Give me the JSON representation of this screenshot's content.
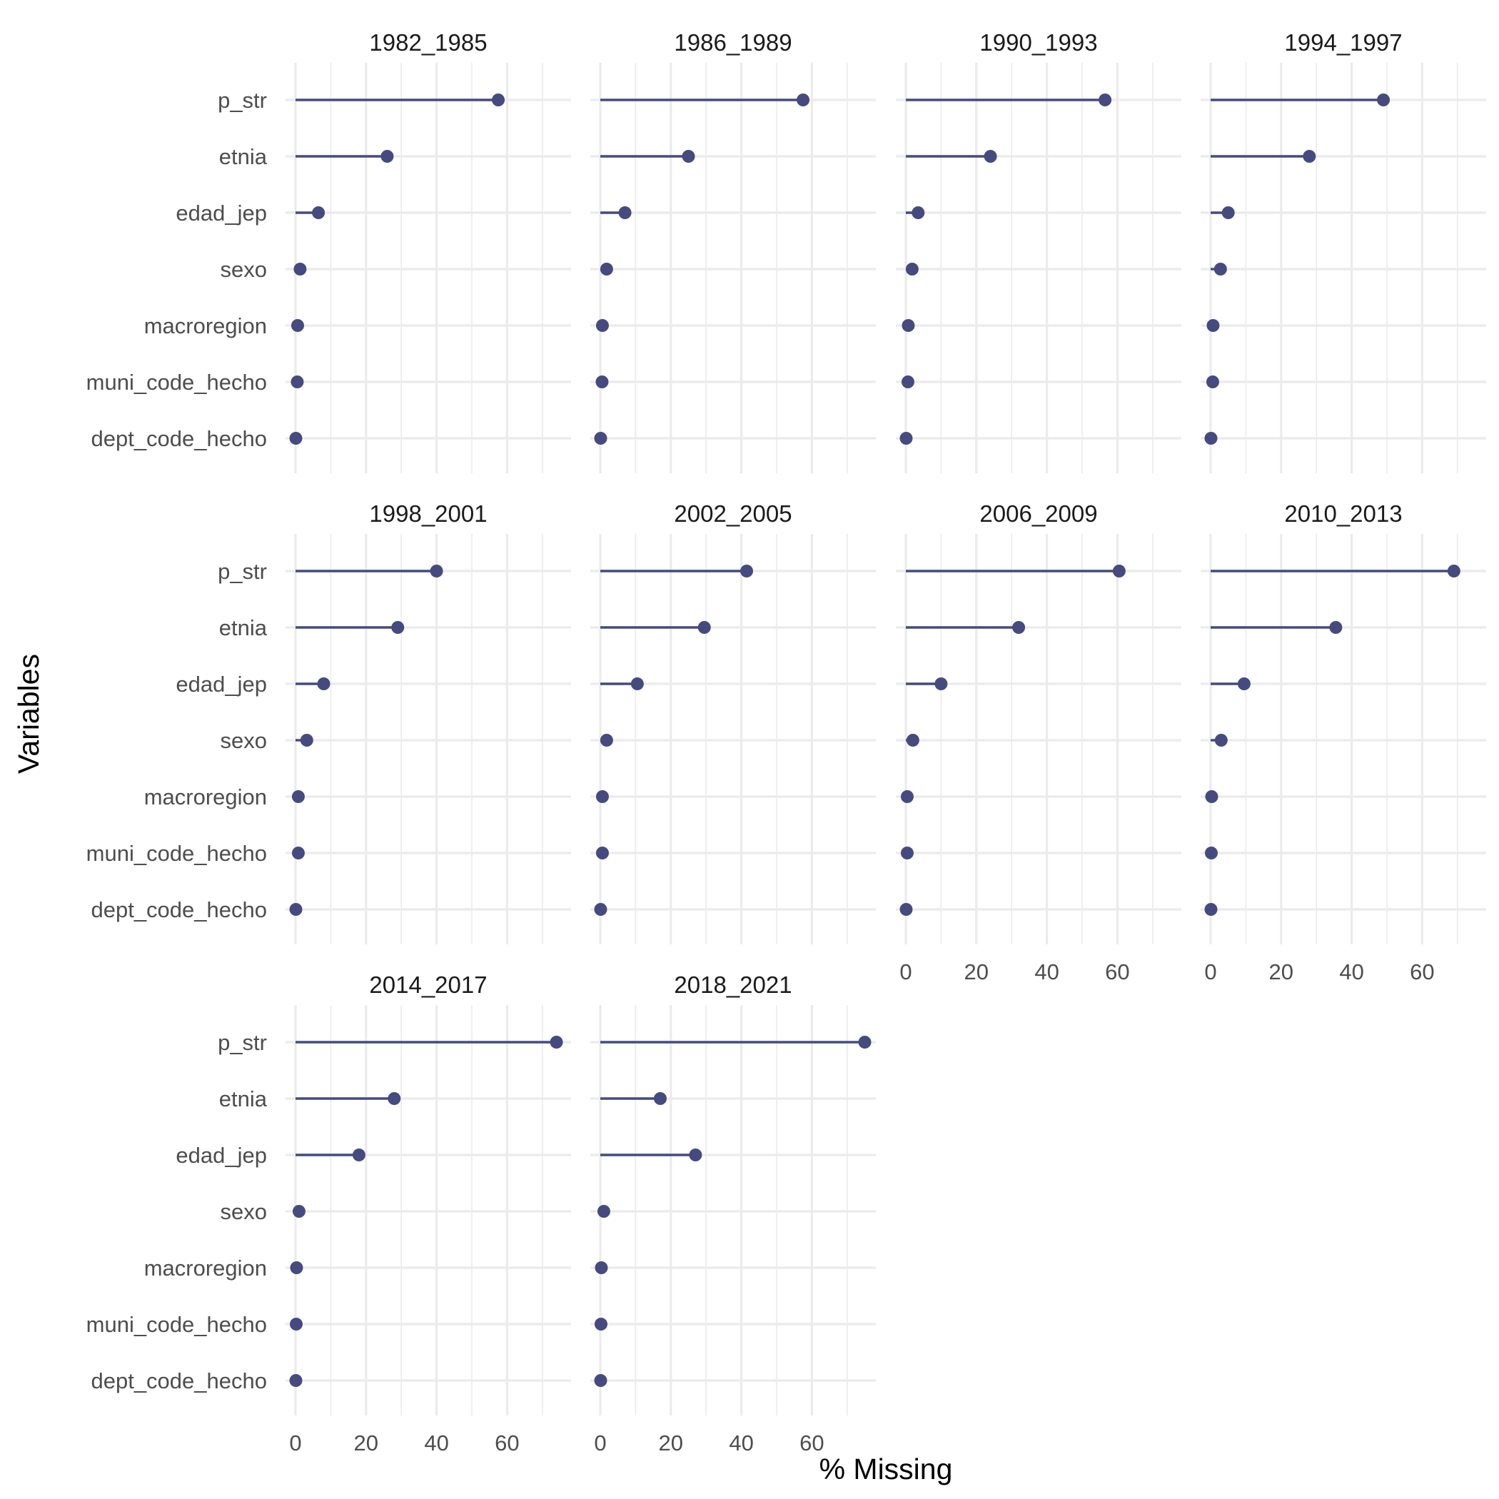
{
  "chart_data": {
    "type": "lollipop",
    "xlabel": "% Missing",
    "ylabel": "Variables",
    "x_ticks": [
      0,
      20,
      40,
      60
    ],
    "xlim": [
      0,
      80
    ],
    "color": "#454b7e",
    "grid": true,
    "facet_columns": 4,
    "variables": [
      "p_str",
      "etnia",
      "edad_jep",
      "sexo",
      "macroregion",
      "muni_code_hecho",
      "dept_code_hecho"
    ],
    "panels": [
      {
        "name": "1982_1985",
        "values": [
          57.5,
          26,
          6.5,
          1.3,
          0.6,
          0.5,
          0.1
        ]
      },
      {
        "name": "1986_1989",
        "values": [
          57.5,
          25,
          7,
          1.8,
          0.6,
          0.5,
          0.1
        ]
      },
      {
        "name": "1990_1993",
        "values": [
          56.5,
          24,
          3.5,
          1.8,
          0.7,
          0.6,
          0.1
        ]
      },
      {
        "name": "1994_1997",
        "values": [
          49,
          28,
          5,
          2.8,
          0.7,
          0.6,
          0.1
        ]
      },
      {
        "name": "1998_2001",
        "values": [
          40,
          29,
          8,
          3.2,
          0.8,
          0.8,
          0.1
        ]
      },
      {
        "name": "2002_2005",
        "values": [
          41.5,
          29.5,
          10.5,
          1.8,
          0.6,
          0.6,
          0.1
        ]
      },
      {
        "name": "2006_2009",
        "values": [
          60.5,
          32,
          10,
          2,
          0.4,
          0.4,
          0.1
        ]
      },
      {
        "name": "2010_2013",
        "values": [
          69,
          35.5,
          9.5,
          3,
          0.3,
          0.2,
          0.1
        ]
      },
      {
        "name": "2014_2017",
        "values": [
          74,
          28,
          18,
          1,
          0.3,
          0.2,
          0.1
        ]
      },
      {
        "name": "2018_2021",
        "values": [
          75,
          17,
          27,
          1,
          0.3,
          0.2,
          0.1
        ]
      }
    ]
  }
}
